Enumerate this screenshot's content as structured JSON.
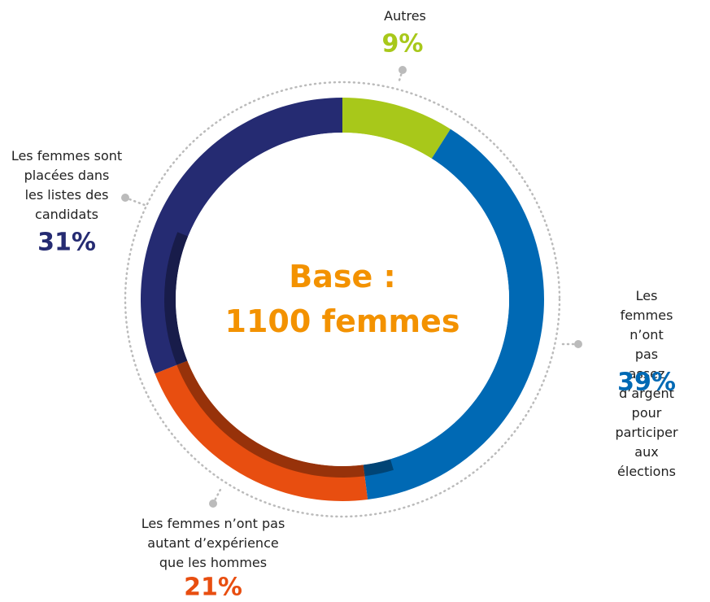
{
  "chart_data": {
    "type": "donut",
    "center_text": [
      "Base :",
      "1100 femmes"
    ],
    "categories": [
      "Autres",
      "Les femmes n’ont\npas assez d’argent\npour participer\naux élections",
      "Les femmes n’ont pas\nautant d’expérience\nque les hommes",
      "Les femmes sont\nplacées dans\nles listes des\ncandidats"
    ],
    "values": [
      9,
      39,
      21,
      31
    ],
    "value_labels": [
      "9%",
      "39%",
      "21%",
      "31%"
    ],
    "colors": [
      "#a8c81a",
      "#0069b4",
      "#e84e10",
      "#252b72"
    ]
  }
}
